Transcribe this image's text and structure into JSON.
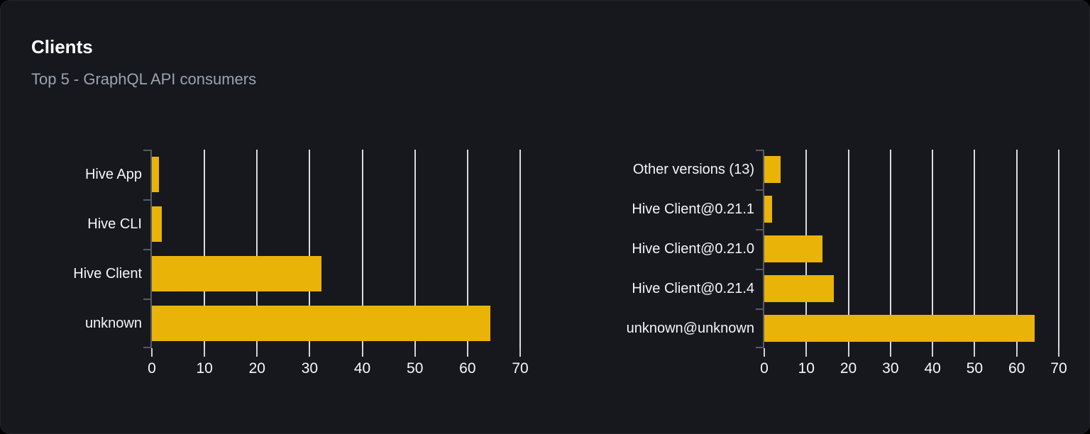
{
  "header": {
    "title": "Clients",
    "subtitle": "Top 5 - GraphQL API consumers"
  },
  "colors": {
    "bar": "#eab308",
    "card_bg": "#16181d",
    "page_bg": "#000000",
    "gridline": "#e3e6ed",
    "axis": "#565b66",
    "x_tick": "#ced3da",
    "category_label": "#f3f5f7",
    "tick_label": "#f7f8fa",
    "title": "#ffffff",
    "subtitle": "#9ca3af"
  },
  "chart_data": [
    {
      "type": "bar",
      "orientation": "horizontal",
      "name": "clients-by-name",
      "categories": [
        "Hive App",
        "Hive CLI",
        "Hive Client",
        "unknown"
      ],
      "values": [
        1.3,
        1.9,
        32.3,
        64.3
      ],
      "xlim": [
        0,
        70
      ],
      "xticks": [
        0,
        10,
        20,
        30,
        40,
        50,
        60,
        70
      ],
      "grid": true,
      "legend": false
    },
    {
      "type": "bar",
      "orientation": "horizontal",
      "name": "clients-by-version",
      "categories": [
        "Other versions (13)",
        "Hive Client@0.21.1",
        "Hive Client@0.21.0",
        "Hive Client@0.21.4",
        "unknown@unknown"
      ],
      "values": [
        3.9,
        1.8,
        13.8,
        16.5,
        64.3
      ],
      "xlim": [
        0,
        70
      ],
      "xticks": [
        0,
        10,
        20,
        30,
        40,
        50,
        60,
        70
      ],
      "grid": true,
      "legend": false
    }
  ]
}
